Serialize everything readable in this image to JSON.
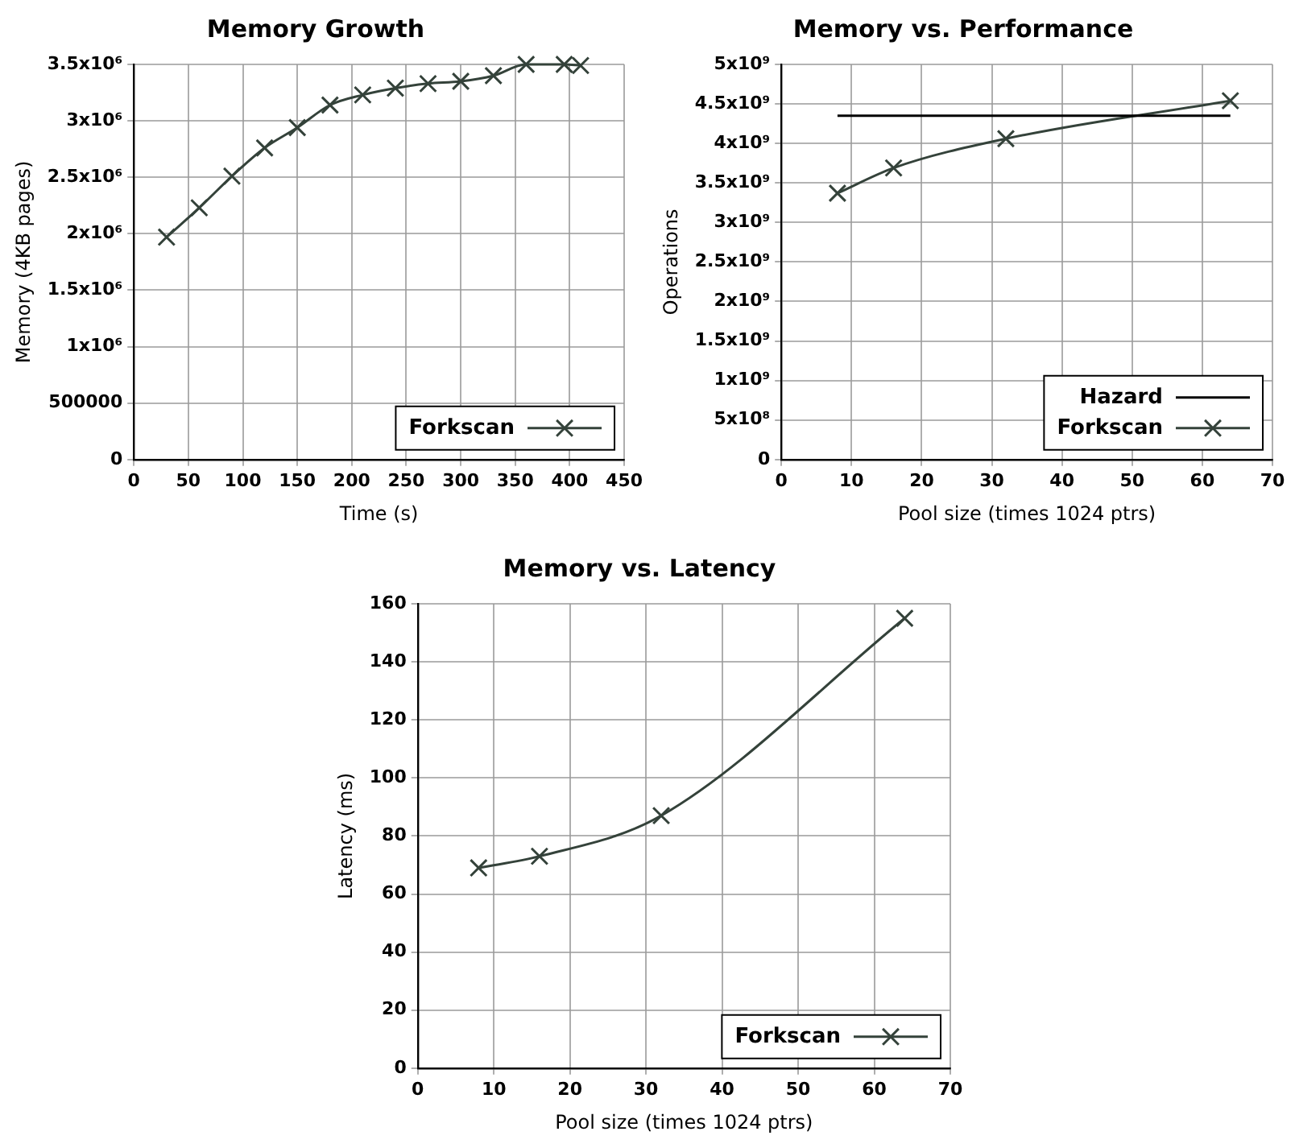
{
  "chart_data": [
    {
      "type": "line",
      "title": "Memory Growth",
      "xlabel": "Time (s)",
      "ylabel": "Memory (4KB pages)",
      "series": [
        {
          "name": "Forkscan",
          "color": "#34423a",
          "marker": "cross",
          "x": [
            30,
            60,
            90,
            120,
            150,
            180,
            210,
            240,
            270,
            300,
            330,
            360,
            395,
            410
          ],
          "values": [
            1970000,
            2230000,
            2510000,
            2760000,
            2940000,
            3140000,
            3230000,
            3290000,
            3330000,
            3350000,
            3400000,
            3500000,
            3500000,
            3490000
          ]
        }
      ],
      "xlim": [
        0,
        450
      ],
      "xticks": [
        0,
        50,
        100,
        150,
        200,
        250,
        300,
        350,
        400,
        450
      ],
      "ylim": [
        0,
        3500000
      ],
      "yticks": [
        0,
        500000,
        {
          "value": 1000000,
          "label": "1x10⁶"
        },
        {
          "value": 1500000,
          "label": "1.5x10⁶"
        },
        {
          "value": 2000000,
          "label": "2x10⁶"
        },
        {
          "value": 2500000,
          "label": "2.5x10⁶"
        },
        {
          "value": 3000000,
          "label": "3x10⁶"
        },
        {
          "value": 3500000,
          "label": "3.5x10⁶"
        }
      ],
      "grid": true,
      "legend": "bottom right"
    },
    {
      "type": "line",
      "title": "Memory vs. Performance",
      "xlabel": "Pool size (times 1024 ptrs)",
      "ylabel": "Operations",
      "series": [
        {
          "name": "Hazard",
          "color": "#000000",
          "marker": "none",
          "x": [
            8,
            64
          ],
          "values": [
            4350000000,
            4350000000
          ]
        },
        {
          "name": "Forkscan",
          "color": "#34423a",
          "marker": "cross",
          "x": [
            8,
            16,
            32,
            64
          ],
          "values": [
            3370000000,
            3690000000,
            4060000000,
            4540000000
          ]
        }
      ],
      "xlim": [
        0,
        70
      ],
      "xticks": [
        0,
        10,
        20,
        30,
        40,
        50,
        60,
        70
      ],
      "ylim": [
        0,
        5000000000
      ],
      "yticks": [
        0,
        {
          "value": 500000000,
          "label": "5x10⁸"
        },
        {
          "value": 1000000000,
          "label": "1x10⁹"
        },
        {
          "value": 1500000000,
          "label": "1.5x10⁹"
        },
        {
          "value": 2000000000,
          "label": "2x10⁹"
        },
        {
          "value": 2500000000,
          "label": "2.5x10⁹"
        },
        {
          "value": 3000000000,
          "label": "3x10⁹"
        },
        {
          "value": 3500000000,
          "label": "3.5x10⁹"
        },
        {
          "value": 4000000000,
          "label": "4x10⁹"
        },
        {
          "value": 4500000000,
          "label": "4.5x10⁹"
        },
        {
          "value": 5000000000,
          "label": "5x10⁹"
        }
      ],
      "grid": true,
      "legend": "bottom right"
    },
    {
      "type": "line",
      "title": "Memory vs. Latency",
      "xlabel": "Pool size (times 1024 ptrs)",
      "ylabel": "Latency (ms)",
      "series": [
        {
          "name": "Forkscan",
          "color": "#34423a",
          "marker": "cross",
          "x": [
            8,
            16,
            32,
            64
          ],
          "values": [
            69,
            73,
            87,
            155
          ]
        }
      ],
      "xlim": [
        0,
        70
      ],
      "xticks": [
        0,
        10,
        20,
        30,
        40,
        50,
        60,
        70
      ],
      "ylim": [
        0,
        160
      ],
      "yticks": [
        0,
        20,
        40,
        60,
        80,
        100,
        120,
        140,
        160
      ],
      "grid": true,
      "legend": "bottom right"
    }
  ]
}
